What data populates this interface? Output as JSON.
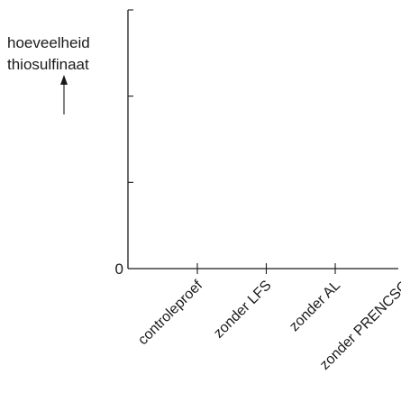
{
  "chart_data": {
    "type": "bar",
    "ylabel_lines": [
      "hoeveelheid",
      "thiosulfinaat"
    ],
    "ylabel_arrow": "up-arrow-icon",
    "y_zero_label": "0",
    "categories": [
      "controleproef",
      "zonder LFS",
      "zonder AL",
      "zonder PRENCSO"
    ],
    "values": [
      null,
      null,
      null,
      null
    ],
    "y_tick_count": 3,
    "grid": false,
    "legend": "none",
    "colors": {
      "axis": "#1a1a1a",
      "background": "#ffffff"
    }
  }
}
